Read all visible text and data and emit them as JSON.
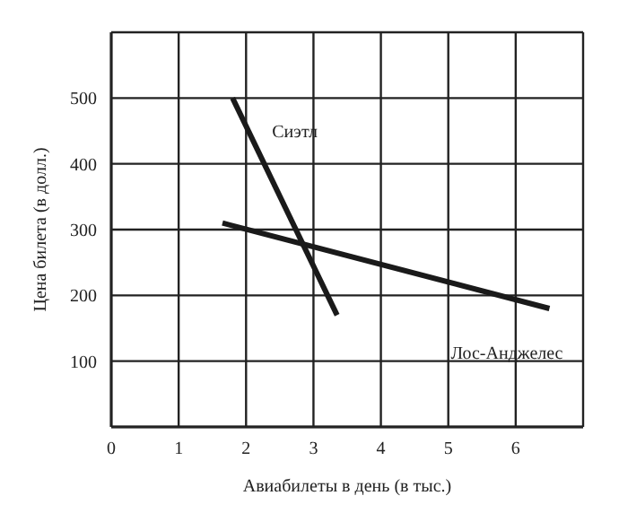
{
  "chart_data": {
    "type": "line",
    "xlabel": "Авиабилеты в день (в тыс.)",
    "ylabel": "Цена билета (в долл.)",
    "series": [
      {
        "name": "Сиэтл",
        "color": "#1a1a1a",
        "x": [
          1.8,
          3.35
        ],
        "values": [
          500,
          170
        ]
      },
      {
        "name": "Лос-Анджелес",
        "color": "#1a1a1a",
        "x": [
          1.65,
          6.5
        ],
        "values": [
          310,
          180
        ]
      }
    ],
    "xlim": [
      0,
      7
    ],
    "xticks": [
      0,
      1,
      2,
      3,
      4,
      5,
      6
    ],
    "ylim": [
      0,
      600
    ],
    "yticks": [
      100,
      200,
      300,
      400,
      500
    ],
    "grid": true,
    "marker": "none",
    "line_style": "solid"
  }
}
